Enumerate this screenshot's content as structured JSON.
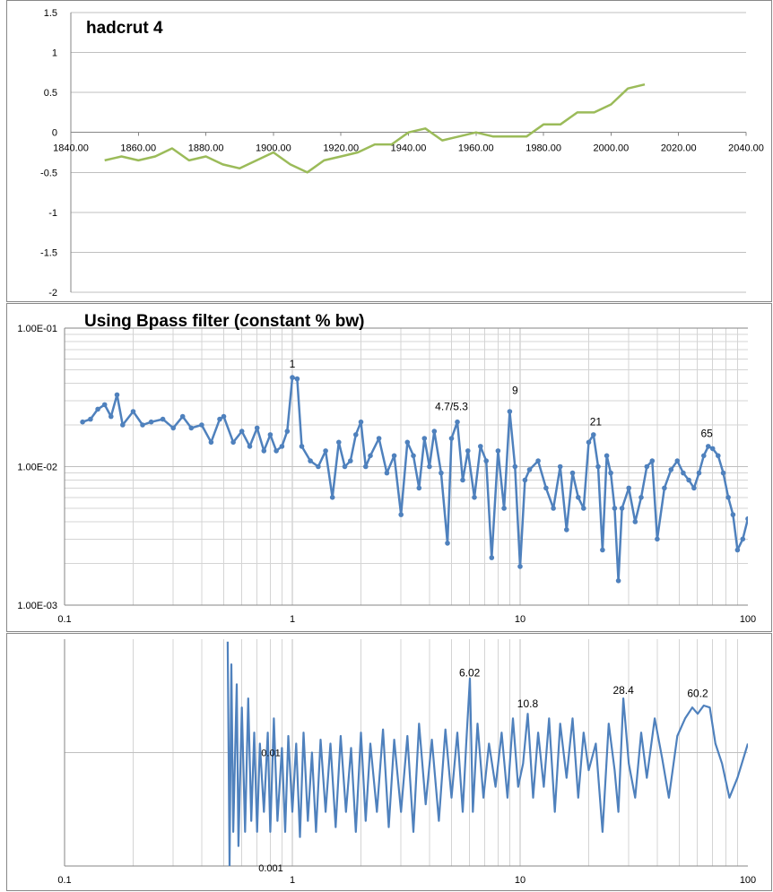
{
  "chart_data": [
    {
      "type": "line",
      "title": "hadcrut 4",
      "xlim": [
        1840,
        2040
      ],
      "ylim": [
        -2,
        1.5
      ],
      "x_ticks": [
        1840,
        1860,
        1880,
        1900,
        1920,
        1940,
        1960,
        1980,
        2000,
        2020,
        2040
      ],
      "x_tick_labels": [
        "1840.00",
        "1860.00",
        "1880.00",
        "1900.00",
        "1920.00",
        "1940.00",
        "1960.00",
        "1980.00",
        "2000.00",
        "2020.00",
        "2040.00"
      ],
      "y_ticks": [
        1.5,
        1,
        0.5,
        0,
        -0.5,
        -1,
        -1.5,
        -2
      ],
      "y_tick_labels": [
        "1.5",
        "1",
        "0.5",
        "0",
        "-0.5",
        "-1",
        "-1.5",
        "-2"
      ],
      "grid": "horizontal",
      "color": "#9bbb59",
      "series": [
        {
          "x": [
            1850,
            1855,
            1860,
            1865,
            1870,
            1875,
            1880,
            1885,
            1890,
            1895,
            1900,
            1905,
            1910,
            1915,
            1920,
            1925,
            1930,
            1935,
            1940,
            1945,
            1950,
            1955,
            1960,
            1965,
            1970,
            1975,
            1980,
            1985,
            1990,
            1995,
            2000,
            2005,
            2010
          ],
          "values": [
            -0.35,
            -0.3,
            -0.35,
            -0.3,
            -0.2,
            -0.35,
            -0.3,
            -0.4,
            -0.45,
            -0.35,
            -0.25,
            -0.4,
            -0.5,
            -0.35,
            -0.3,
            -0.25,
            -0.15,
            -0.15,
            0.0,
            0.05,
            -0.1,
            -0.05,
            0.0,
            -0.05,
            -0.05,
            -0.05,
            0.1,
            0.1,
            0.25,
            0.25,
            0.35,
            0.55,
            0.6
          ]
        }
      ]
    },
    {
      "type": "line",
      "title": "Using Bpass filter (constant % bw)",
      "x_scale": "log",
      "y_scale": "log",
      "xlim": [
        0.1,
        100
      ],
      "ylim": [
        0.001,
        0.1
      ],
      "x_tick_labels": [
        "0.1",
        "1",
        "10",
        "100"
      ],
      "y_tick_labels": [
        "1.00E-01",
        "1.00E-02",
        "1.00E-03"
      ],
      "grid": "both",
      "color": "#4f81bd",
      "markers": true,
      "annotations": [
        {
          "text": "1",
          "x": 1.0,
          "y": 0.052
        },
        {
          "text": "4.7/5.3",
          "x": 5.0,
          "y": 0.0255
        },
        {
          "text": "9",
          "x": 9.5,
          "y": 0.0335
        },
        {
          "text": "21",
          "x": 21.5,
          "y": 0.0198
        },
        {
          "text": "65",
          "x": 66,
          "y": 0.0163
        }
      ],
      "series": [
        {
          "x": [
            0.12,
            0.13,
            0.14,
            0.15,
            0.16,
            0.17,
            0.18,
            0.2,
            0.22,
            0.24,
            0.27,
            0.3,
            0.33,
            0.36,
            0.4,
            0.44,
            0.48,
            0.5,
            0.55,
            0.6,
            0.65,
            0.7,
            0.75,
            0.8,
            0.85,
            0.9,
            0.95,
            1.0,
            1.05,
            1.1,
            1.2,
            1.3,
            1.4,
            1.5,
            1.6,
            1.7,
            1.8,
            1.9,
            2.0,
            2.1,
            2.2,
            2.4,
            2.6,
            2.8,
            3.0,
            3.2,
            3.4,
            3.6,
            3.8,
            4.0,
            4.2,
            4.5,
            4.8,
            5.0,
            5.3,
            5.6,
            5.9,
            6.3,
            6.7,
            7.1,
            7.5,
            8.0,
            8.5,
            9.0,
            9.5,
            10.0,
            10.5,
            11,
            12,
            13,
            14,
            15,
            16,
            17,
            18,
            19,
            20,
            21,
            22,
            23,
            24,
            25,
            26,
            27,
            28,
            30,
            32,
            34,
            36,
            38,
            40,
            43,
            46,
            49,
            52,
            55,
            58,
            61,
            64,
            67,
            70,
            74,
            78,
            82,
            86,
            90,
            95,
            100
          ],
          "values": [
            0.021,
            0.022,
            0.026,
            0.028,
            0.023,
            0.033,
            0.02,
            0.025,
            0.02,
            0.021,
            0.022,
            0.019,
            0.023,
            0.019,
            0.02,
            0.015,
            0.022,
            0.023,
            0.015,
            0.018,
            0.014,
            0.019,
            0.013,
            0.017,
            0.013,
            0.014,
            0.018,
            0.044,
            0.043,
            0.014,
            0.011,
            0.01,
            0.013,
            0.006,
            0.015,
            0.01,
            0.011,
            0.017,
            0.021,
            0.01,
            0.012,
            0.016,
            0.009,
            0.012,
            0.0045,
            0.015,
            0.012,
            0.007,
            0.016,
            0.01,
            0.018,
            0.009,
            0.0028,
            0.016,
            0.021,
            0.008,
            0.013,
            0.006,
            0.014,
            0.011,
            0.0022,
            0.013,
            0.005,
            0.025,
            0.01,
            0.0019,
            0.008,
            0.0095,
            0.011,
            0.007,
            0.005,
            0.01,
            0.0035,
            0.009,
            0.006,
            0.005,
            0.015,
            0.017,
            0.01,
            0.0025,
            0.012,
            0.009,
            0.005,
            0.0015,
            0.005,
            0.007,
            0.004,
            0.006,
            0.01,
            0.011,
            0.003,
            0.007,
            0.0095,
            0.011,
            0.009,
            0.008,
            0.007,
            0.009,
            0.012,
            0.014,
            0.0135,
            0.012,
            0.009,
            0.006,
            0.0045,
            0.0025,
            0.003,
            0.0042
          ]
        }
      ]
    },
    {
      "type": "line",
      "x_scale": "log",
      "y_scale": "log",
      "xlim": [
        0.1,
        100
      ],
      "ylim": [
        0.001,
        0.1
      ],
      "x_tick_labels": [
        "0.1",
        "1",
        "10",
        "100"
      ],
      "y_tick_labels": [
        "0.01",
        "0.001"
      ],
      "grid": "both",
      "color": "#4f81bd",
      "annotations": [
        {
          "text": "6.02",
          "x": 6.0,
          "y": 0.047
        },
        {
          "text": "10.8",
          "x": 10.8,
          "y": 0.025
        },
        {
          "text": "28.4",
          "x": 28.4,
          "y": 0.033
        },
        {
          "text": "60.2",
          "x": 60.2,
          "y": 0.031
        }
      ],
      "series": [
        {
          "x": [
            0.52,
            0.53,
            0.54,
            0.55,
            0.57,
            0.58,
            0.6,
            0.62,
            0.64,
            0.66,
            0.68,
            0.7,
            0.72,
            0.75,
            0.78,
            0.8,
            0.83,
            0.86,
            0.9,
            0.93,
            0.96,
            1.0,
            1.04,
            1.08,
            1.12,
            1.17,
            1.22,
            1.27,
            1.33,
            1.4,
            1.47,
            1.55,
            1.63,
            1.72,
            1.81,
            1.9,
            2.0,
            2.1,
            2.2,
            2.35,
            2.5,
            2.65,
            2.8,
            3.0,
            3.2,
            3.4,
            3.6,
            3.85,
            4.1,
            4.4,
            4.7,
            5.0,
            5.3,
            5.6,
            5.8,
            6.02,
            6.2,
            6.5,
            6.9,
            7.3,
            7.8,
            8.3,
            8.8,
            9.3,
            9.8,
            10.3,
            10.8,
            11.4,
            12,
            12.7,
            13.4,
            14.2,
            15,
            16,
            17,
            18,
            19,
            20,
            21.5,
            23,
            24.5,
            26,
            27,
            28.4,
            30,
            32,
            34,
            36,
            39,
            42,
            45,
            49,
            53,
            57,
            60.2,
            64,
            68,
            72,
            77,
            83,
            90,
            100
          ],
          "values": [
            0.095,
            0.001,
            0.06,
            0.002,
            0.04,
            0.0015,
            0.025,
            0.002,
            0.03,
            0.0025,
            0.015,
            0.002,
            0.012,
            0.003,
            0.015,
            0.002,
            0.02,
            0.0025,
            0.011,
            0.002,
            0.014,
            0.003,
            0.012,
            0.0018,
            0.015,
            0.0025,
            0.01,
            0.002,
            0.013,
            0.003,
            0.012,
            0.0022,
            0.014,
            0.003,
            0.011,
            0.002,
            0.015,
            0.0025,
            0.012,
            0.003,
            0.016,
            0.0022,
            0.013,
            0.003,
            0.014,
            0.002,
            0.018,
            0.0035,
            0.013,
            0.0025,
            0.016,
            0.004,
            0.015,
            0.003,
            0.012,
            0.045,
            0.003,
            0.018,
            0.004,
            0.012,
            0.005,
            0.015,
            0.004,
            0.02,
            0.005,
            0.008,
            0.022,
            0.004,
            0.015,
            0.005,
            0.02,
            0.003,
            0.018,
            0.006,
            0.02,
            0.004,
            0.015,
            0.007,
            0.012,
            0.002,
            0.018,
            0.007,
            0.003,
            0.03,
            0.008,
            0.004,
            0.015,
            0.006,
            0.02,
            0.009,
            0.004,
            0.014,
            0.02,
            0.025,
            0.022,
            0.026,
            0.025,
            0.012,
            0.008,
            0.004,
            0.006,
            0.012
          ]
        }
      ]
    }
  ]
}
